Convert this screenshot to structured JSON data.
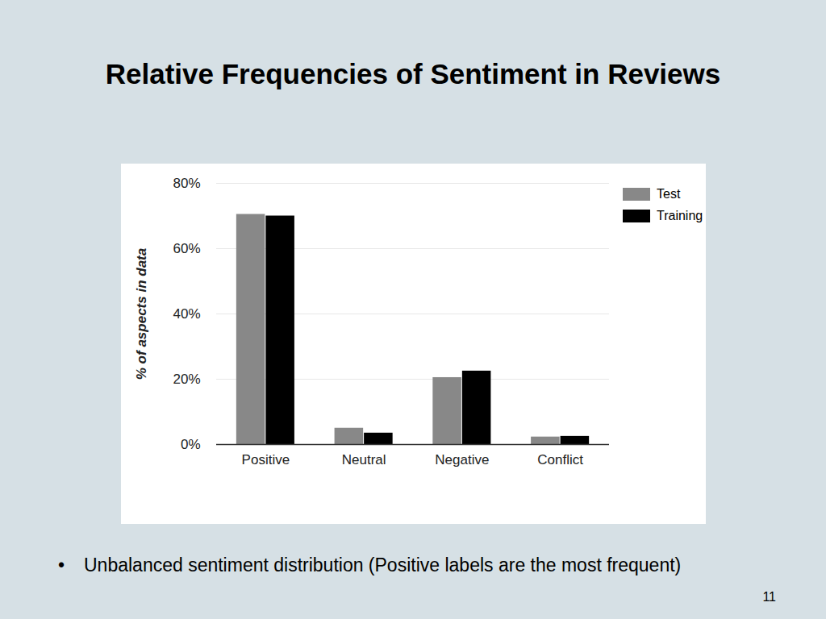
{
  "chart_data": {
    "type": "bar",
    "title": "Relative Frequencies of Sentiment in Reviews",
    "ylabel": "% of aspects in data",
    "categories": [
      "Positive",
      "Neutral",
      "Negative",
      "Conflict"
    ],
    "series": [
      {
        "name": "Test",
        "color": "#888888",
        "values": [
          70.5,
          5,
          20.5,
          2.3
        ]
      },
      {
        "name": "Training",
        "color": "#000000",
        "values": [
          70,
          3.5,
          22.5,
          2.5
        ]
      }
    ],
    "ylim": [
      0,
      80
    ],
    "yticks": [
      {
        "value": 0,
        "label": "0%"
      },
      {
        "value": 20,
        "label": "20%"
      },
      {
        "value": 40,
        "label": "40%"
      },
      {
        "value": 60,
        "label": "60%"
      },
      {
        "value": 80,
        "label": "80%"
      }
    ],
    "grid": true,
    "legend": "top-right"
  },
  "bullet": "Unbalanced sentiment distribution (Positive labels are the most frequent)",
  "page_number": 11
}
